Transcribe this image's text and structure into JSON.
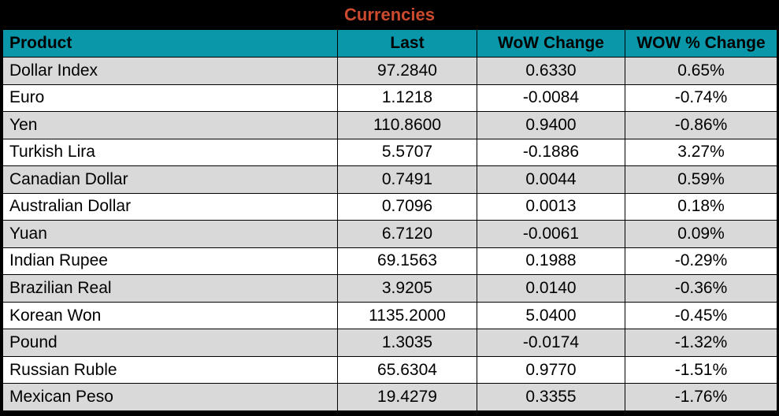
{
  "title": "Currencies",
  "colors": {
    "frame_bg": "#000000",
    "title_text": "#CC4A2D",
    "header_bg": "#0997A9",
    "header_text": "#000000",
    "row_alt_bg": "#D9D9D9",
    "row_bg": "#FFFFFF",
    "border": "#000000"
  },
  "table": {
    "columns": [
      "Product",
      "Last",
      "WoW Change",
      "WOW % Change"
    ],
    "keys": [
      "product",
      "last",
      "wow_change",
      "wow_pct_change"
    ],
    "rows": [
      {
        "product": "Dollar Index",
        "last": "97.2840",
        "wow_change": "0.6330",
        "wow_pct_change": "0.65%"
      },
      {
        "product": "Euro",
        "last": "1.1218",
        "wow_change": "-0.0084",
        "wow_pct_change": "-0.74%"
      },
      {
        "product": "Yen",
        "last": "110.8600",
        "wow_change": "0.9400",
        "wow_pct_change": "-0.86%"
      },
      {
        "product": "Turkish Lira",
        "last": "5.5707",
        "wow_change": "-0.1886",
        "wow_pct_change": "3.27%"
      },
      {
        "product": "Canadian Dollar",
        "last": "0.7491",
        "wow_change": "0.0044",
        "wow_pct_change": "0.59%"
      },
      {
        "product": "Australian Dollar",
        "last": "0.7096",
        "wow_change": "0.0013",
        "wow_pct_change": "0.18%"
      },
      {
        "product": "Yuan",
        "last": "6.7120",
        "wow_change": "-0.0061",
        "wow_pct_change": "0.09%"
      },
      {
        "product": "Indian Rupee",
        "last": "69.1563",
        "wow_change": "0.1988",
        "wow_pct_change": "-0.29%"
      },
      {
        "product": "Brazilian Real",
        "last": "3.9205",
        "wow_change": "0.0140",
        "wow_pct_change": "-0.36%"
      },
      {
        "product": "Korean Won",
        "last": "1135.2000",
        "wow_change": "5.0400",
        "wow_pct_change": "-0.45%"
      },
      {
        "product": "Pound",
        "last": "1.3035",
        "wow_change": "-0.0174",
        "wow_pct_change": "-1.32%"
      },
      {
        "product": "Russian Ruble",
        "last": "65.6304",
        "wow_change": "0.9770",
        "wow_pct_change": "-1.51%"
      },
      {
        "product": "Mexican Peso",
        "last": "19.4279",
        "wow_change": "0.3355",
        "wow_pct_change": "-1.76%"
      }
    ]
  },
  "chart_data": {
    "type": "table",
    "title": "Currencies",
    "columns": [
      "Product",
      "Last",
      "WoW Change",
      "WOW % Change"
    ],
    "rows": [
      [
        "Dollar Index",
        97.284,
        0.633,
        "0.65%"
      ],
      [
        "Euro",
        1.1218,
        -0.0084,
        "-0.74%"
      ],
      [
        "Yen",
        110.86,
        0.94,
        "-0.86%"
      ],
      [
        "Turkish Lira",
        5.5707,
        -0.1886,
        "3.27%"
      ],
      [
        "Canadian Dollar",
        0.7491,
        0.0044,
        "0.59%"
      ],
      [
        "Australian Dollar",
        0.7096,
        0.0013,
        "0.18%"
      ],
      [
        "Yuan",
        6.712,
        -0.0061,
        "0.09%"
      ],
      [
        "Indian Rupee",
        69.1563,
        0.1988,
        "-0.29%"
      ],
      [
        "Brazilian Real",
        3.9205,
        0.014,
        "-0.36%"
      ],
      [
        "Korean Won",
        1135.2,
        5.04,
        "-0.45%"
      ],
      [
        "Pound",
        1.3035,
        -0.0174,
        "-1.32%"
      ],
      [
        "Russian Ruble",
        65.6304,
        0.977,
        "-1.51%"
      ],
      [
        "Mexican Peso",
        19.4279,
        0.3355,
        "-1.76%"
      ]
    ],
    "layout": {
      "alternating_row_shading": true,
      "first_column_align": "left",
      "value_columns_align": "center"
    }
  }
}
